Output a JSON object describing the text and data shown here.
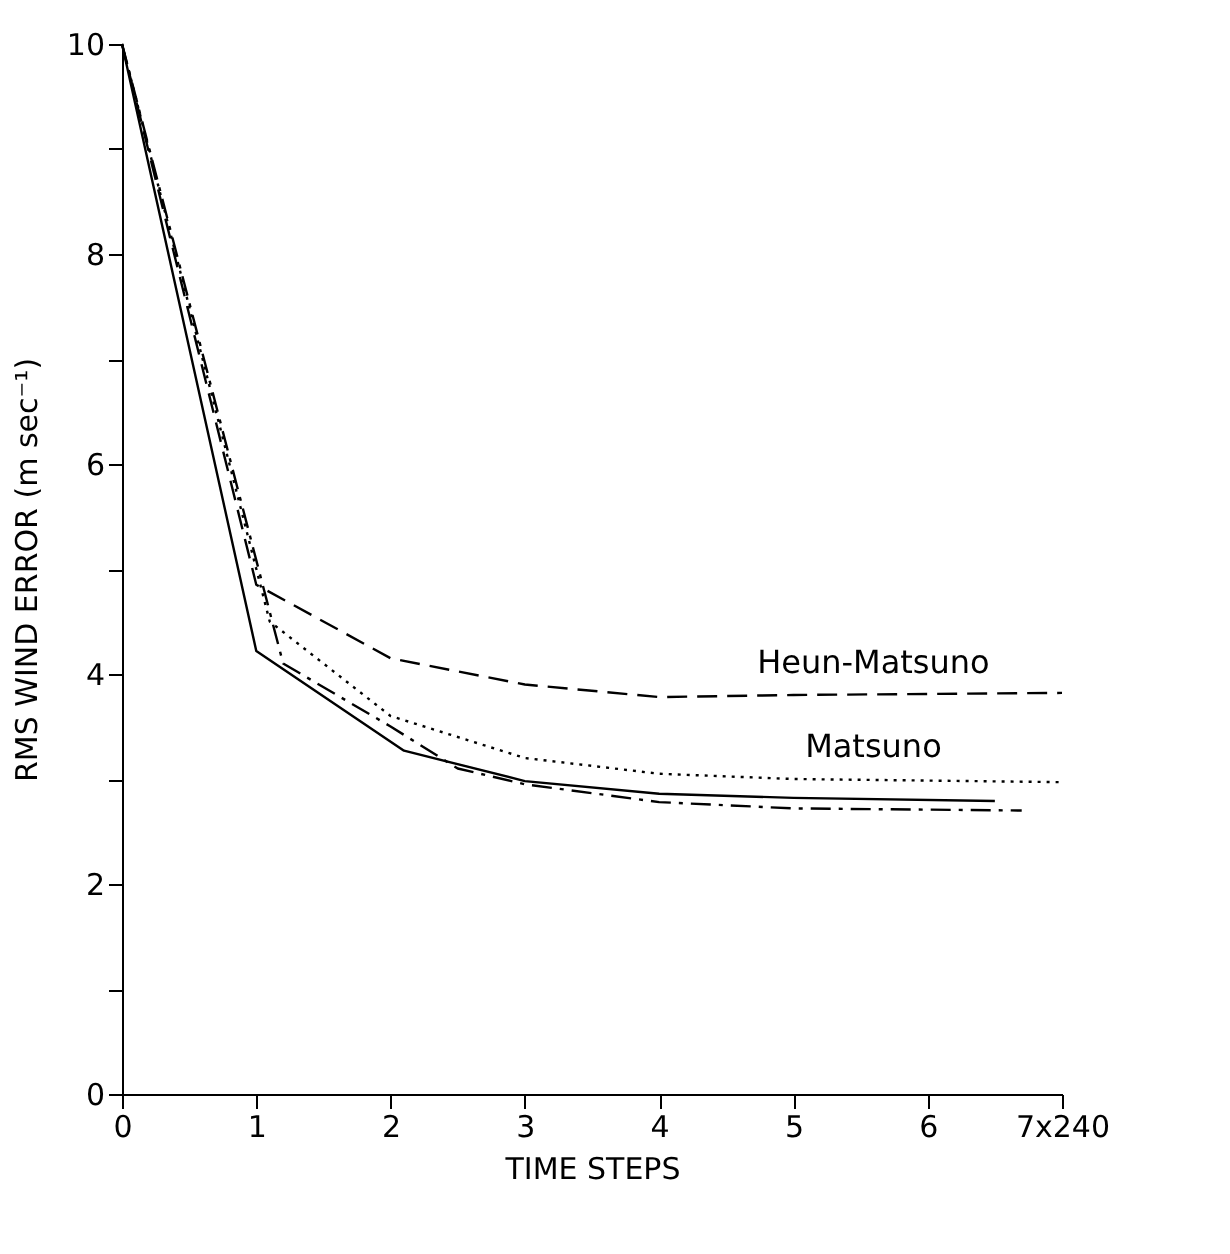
{
  "chart_data": {
    "type": "line",
    "xlabel": "TIME STEPS",
    "ylabel": "RMS WIND ERROR  (m sec⁻¹)",
    "xlim": [
      0,
      7
    ],
    "ylim": [
      0,
      10
    ],
    "xticks": [
      0,
      1,
      2,
      3,
      4,
      5,
      6,
      {
        "value": 7,
        "label": "7x240"
      }
    ],
    "yticks": [
      0,
      {
        "value": 1,
        "label": null
      },
      2,
      {
        "value": 3,
        "label": null
      },
      4,
      {
        "value": 5,
        "label": null
      },
      6,
      {
        "value": 7,
        "label": null
      },
      8,
      {
        "value": 9,
        "label": null
      },
      10
    ],
    "grid": false,
    "marker": "none",
    "series": [
      {
        "color": "#000000",
        "line_style": "solid",
        "x": [
          0,
          1,
          2.1,
          3,
          4,
          5,
          6.5
        ],
        "values": [
          10,
          4.22,
          3.27,
          2.98,
          2.86,
          2.82,
          2.79
        ]
      },
      {
        "name": "Matsuno",
        "color": "#000000",
        "line_style": "dotted",
        "x": [
          0,
          1.1,
          2,
          3,
          4,
          5,
          7
        ],
        "values": [
          10,
          4.5,
          3.6,
          3.2,
          3.05,
          3.0,
          2.97
        ]
      },
      {
        "name": "Heun-Matsuno",
        "color": "#000000",
        "line_style": "dashed",
        "x": [
          0,
          1.0,
          2,
          3,
          4,
          5,
          7
        ],
        "values": [
          10,
          4.85,
          4.15,
          3.9,
          3.78,
          3.8,
          3.82
        ]
      },
      {
        "color": "#000000",
        "line_style": "dashdot",
        "x": [
          0,
          1.2,
          2,
          2.5,
          3,
          4,
          5,
          6.7
        ],
        "values": [
          10,
          4.1,
          3.5,
          3.1,
          2.95,
          2.78,
          2.72,
          2.7
        ]
      }
    ]
  }
}
